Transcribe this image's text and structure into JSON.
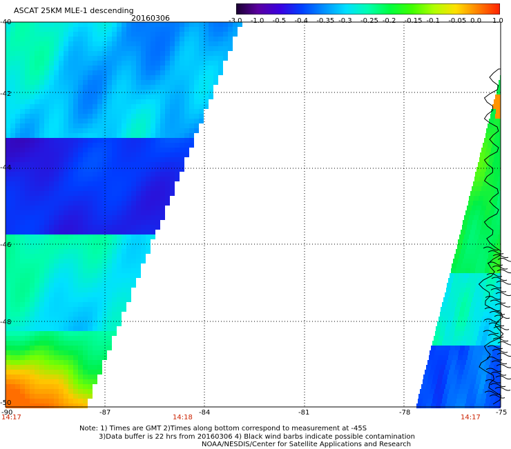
{
  "header": {
    "title": "ASCAT 25KM MLE-1 descending",
    "date": "20160306"
  },
  "colorbar": {
    "labels": [
      "-3.0",
      "-1.0",
      "-0.5",
      "-0.4",
      "-0.35",
      "-0.3",
      "-0.25",
      "-0.2",
      "-0.15",
      "-0.1",
      "-0.05",
      "0.0",
      "1.0"
    ],
    "colors": [
      "#1a0030",
      "#5a00a0",
      "#3a00e0",
      "#0040ff",
      "#0090ff",
      "#00e0ff",
      "#00ffb0",
      "#00ff40",
      "#40ff00",
      "#b0ff00",
      "#ffe000",
      "#ff8000",
      "#ff2000"
    ]
  },
  "map": {
    "lat_labels": [
      "-40",
      "-42",
      "-44",
      "-46",
      "-48",
      "-50"
    ],
    "lon_labels": [
      "-90",
      "-87",
      "-84",
      "-81",
      "-78",
      "-75"
    ],
    "time_labels": [
      "14:17",
      "14:18",
      "14:17"
    ]
  },
  "notes": {
    "line1": "Note: 1) Times are GMT 2)Times along bottom correspond to measurement at -45S",
    "line2": "3)Data buffer is 22 hrs from 20160306 4) Black wind barbs indicate possible contamination",
    "line3": "NOAA/NESDIS/Center for Satellite Applications and Research"
  }
}
